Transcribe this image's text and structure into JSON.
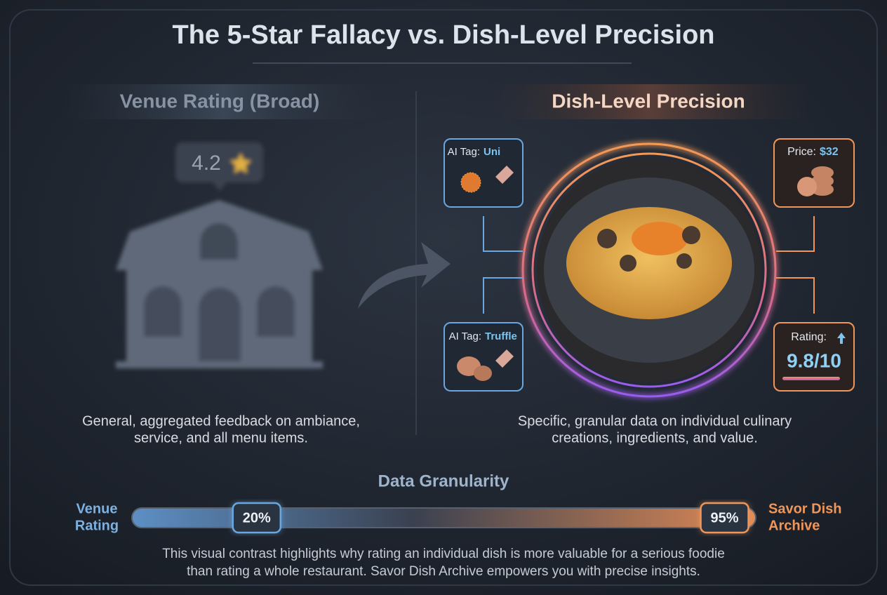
{
  "title": "The 5-Star Fallacy vs. Dish-Level Precision",
  "left": {
    "heading": "Venue Rating (Broad)",
    "rating": "4.2",
    "description": [
      "General, aggregated feedback on ambiance,",
      "service, and all menu items."
    ]
  },
  "right": {
    "heading": "Dish-Level Precision",
    "tags": [
      {
        "prefix": "AI Tag:",
        "value": "Uni"
      },
      {
        "prefix": "AI Tag:",
        "value": "Truffle"
      }
    ],
    "price": {
      "label": "Price:",
      "value": "$32"
    },
    "rating": {
      "label": "Rating:",
      "value": "9.8/10"
    },
    "description": [
      "Specific, granular data on individual culinary",
      "creations, ingredients, and value."
    ]
  },
  "granularity": {
    "title": "Data Granularity",
    "left_label": [
      "Venue",
      "Rating"
    ],
    "right_label": [
      "Savor Dish",
      "Archive"
    ],
    "markers": [
      {
        "value": 20,
        "label": "20%"
      },
      {
        "value": 95,
        "label": "95%"
      }
    ]
  },
  "footer": [
    "This visual contrast highlights why rating an individual dish is more valuable for a serious foodie",
    "than rating a whole restaurant. Savor Dish Archive empowers you with precise insights."
  ]
}
